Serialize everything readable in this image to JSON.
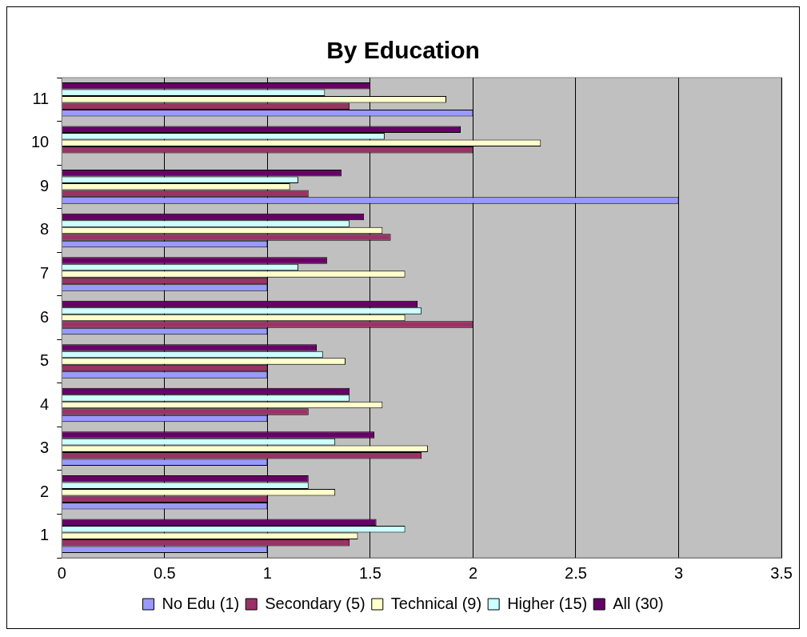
{
  "chart_data": {
    "type": "bar",
    "orientation": "horizontal",
    "title": "By Education",
    "categories": [
      "11",
      "10",
      "9",
      "8",
      "7",
      "6",
      "5",
      "4",
      "3",
      "2",
      "1"
    ],
    "series": [
      {
        "name": "No Edu (1)",
        "color": "#9999ff",
        "values": [
          2.0,
          null,
          3.0,
          1.0,
          1.0,
          1.0,
          1.0,
          1.0,
          1.0,
          1.0,
          1.0
        ]
      },
      {
        "name": "Secondary (5)",
        "color": "#993366",
        "values": [
          1.4,
          2.0,
          1.2,
          1.6,
          1.0,
          2.0,
          1.0,
          1.2,
          1.75,
          1.0,
          1.4
        ]
      },
      {
        "name": "Technical (9)",
        "color": "#ffffcc",
        "values": [
          1.87,
          2.33,
          1.11,
          1.56,
          1.67,
          1.67,
          1.38,
          1.56,
          1.78,
          1.33,
          1.44
        ]
      },
      {
        "name": "Higher (15)",
        "color": "#ccffff",
        "values": [
          1.28,
          1.57,
          1.15,
          1.4,
          1.15,
          1.75,
          1.27,
          1.4,
          1.33,
          1.2,
          1.67
        ]
      },
      {
        "name": "All (30)",
        "color": "#660066",
        "values": [
          1.5,
          1.94,
          1.36,
          1.47,
          1.29,
          1.73,
          1.24,
          1.4,
          1.52,
          1.2,
          1.53
        ]
      }
    ],
    "xlim": [
      0,
      3.5
    ],
    "xticks": [
      0,
      0.5,
      1,
      1.5,
      2,
      2.5,
      3,
      3.5
    ],
    "grid": "x",
    "legend": "bottom"
  }
}
